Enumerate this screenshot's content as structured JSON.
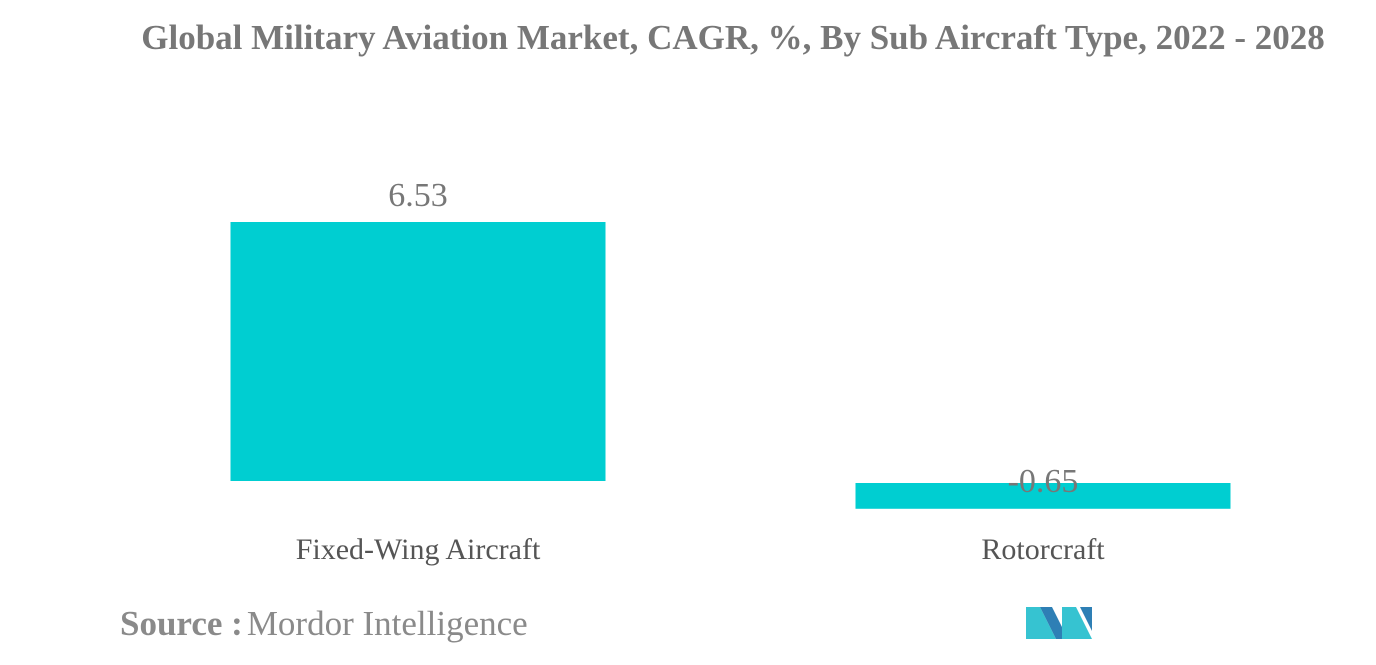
{
  "chart_data": {
    "type": "bar",
    "title": "Global Military Aviation Market, CAGR, %, By Sub Aircraft Type, 2022 - 2028",
    "categories": [
      "Fixed-Wing Aircraft",
      "Rotorcraft"
    ],
    "values": [
      6.53,
      -0.65
    ],
    "value_labels": [
      "6.53",
      "-0.65"
    ],
    "xlabel": "",
    "ylabel": "",
    "grid": false,
    "legend": "none",
    "bar_color": "#00CED1"
  },
  "source": {
    "label": "Source :",
    "text": "Mordor Intelligence"
  },
  "logo": {
    "icon": "mordor-intelligence-logo",
    "colors": [
      "#2E7FB5",
      "#36C3D1"
    ]
  }
}
